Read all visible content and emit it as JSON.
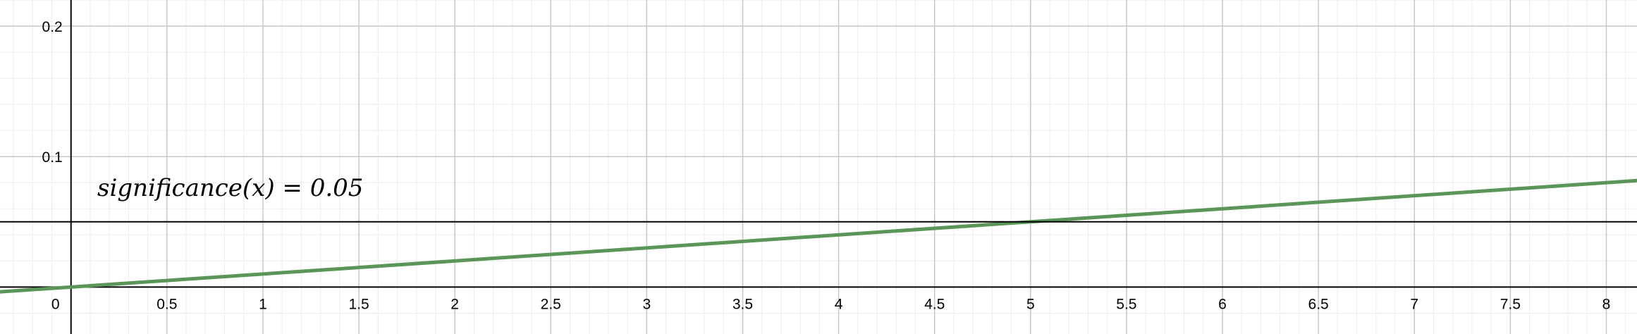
{
  "chart_data": {
    "type": "line",
    "xlim": [
      -0.37,
      8.16
    ],
    "ylim": [
      -0.036,
      0.22
    ],
    "grid": true,
    "x_ticks": [
      {
        "value": 0,
        "label": "0"
      },
      {
        "value": 0.5,
        "label": "0.5"
      },
      {
        "value": 1,
        "label": "1"
      },
      {
        "value": 1.5,
        "label": "1.5"
      },
      {
        "value": 2,
        "label": "2"
      },
      {
        "value": 2.5,
        "label": "2.5"
      },
      {
        "value": 3,
        "label": "3"
      },
      {
        "value": 3.5,
        "label": "3.5"
      },
      {
        "value": 4,
        "label": "4"
      },
      {
        "value": 4.5,
        "label": "4.5"
      },
      {
        "value": 5,
        "label": "5"
      },
      {
        "value": 5.5,
        "label": "5.5"
      },
      {
        "value": 6,
        "label": "6"
      },
      {
        "value": 6.5,
        "label": "6.5"
      },
      {
        "value": 7,
        "label": "7"
      },
      {
        "value": 7.5,
        "label": "7.5"
      },
      {
        "value": 8,
        "label": "8"
      }
    ],
    "y_ticks": [
      {
        "value": 0.1,
        "label": "0.1"
      },
      {
        "value": 0.2,
        "label": "0.2"
      }
    ],
    "series": [
      {
        "color": "#5b9659",
        "x": [
          -0.37,
          0,
          5,
          8.16
        ],
        "y": [
          -0.0037,
          0,
          0.05,
          0.0816
        ]
      },
      {
        "color": "#000000",
        "x": [
          -0.37,
          8.16
        ],
        "y": [
          0.05,
          0.05
        ]
      }
    ],
    "annotations": [
      {
        "text": "significance(x)  =  0.05"
      }
    ]
  }
}
